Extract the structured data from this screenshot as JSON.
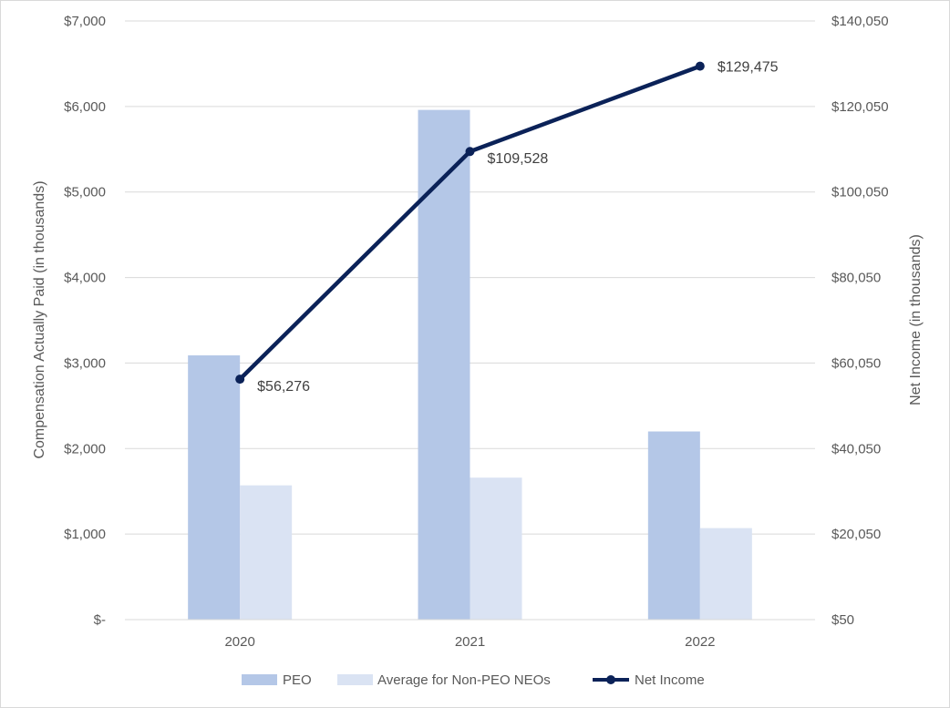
{
  "chart_data": {
    "type": "bar",
    "categories": [
      "2020",
      "2021",
      "2022"
    ],
    "series": [
      {
        "name": "PEO",
        "type": "bar",
        "axis": "left",
        "values": [
          3090,
          5960,
          2200
        ],
        "color": "#b4c7e7"
      },
      {
        "name": "Average for Non-PEO NEOs",
        "type": "bar",
        "axis": "left",
        "values": [
          1570,
          1660,
          1070
        ],
        "color": "#dae3f3"
      },
      {
        "name": "Net Income",
        "type": "line",
        "axis": "right",
        "values": [
          56276,
          109528,
          129475
        ],
        "labels": [
          "$56,276",
          "$109,528",
          "$129,475"
        ],
        "color": "#0b2258"
      }
    ],
    "ylabel": "Compensation Actually Paid (in thousands)",
    "y2label": "Net Income (in thousands)",
    "ylim": [
      0,
      7000
    ],
    "y2lim": [
      50,
      140050
    ],
    "yticks": [
      0,
      1000,
      2000,
      3000,
      4000,
      5000,
      6000,
      7000
    ],
    "ytick_labels": [
      "$-",
      "$1,000",
      "$2,000",
      "$3,000",
      "$4,000",
      "$5,000",
      "$6,000",
      "$7,000"
    ],
    "y2ticks": [
      50,
      20050,
      40050,
      60050,
      80050,
      100050,
      120050,
      140050
    ],
    "y2tick_labels": [
      "$50",
      "$20,050",
      "$40,050",
      "$60,050",
      "$80,050",
      "$100,050",
      "$120,050",
      "$140,050"
    ],
    "grid": true,
    "legend": "bottom"
  }
}
